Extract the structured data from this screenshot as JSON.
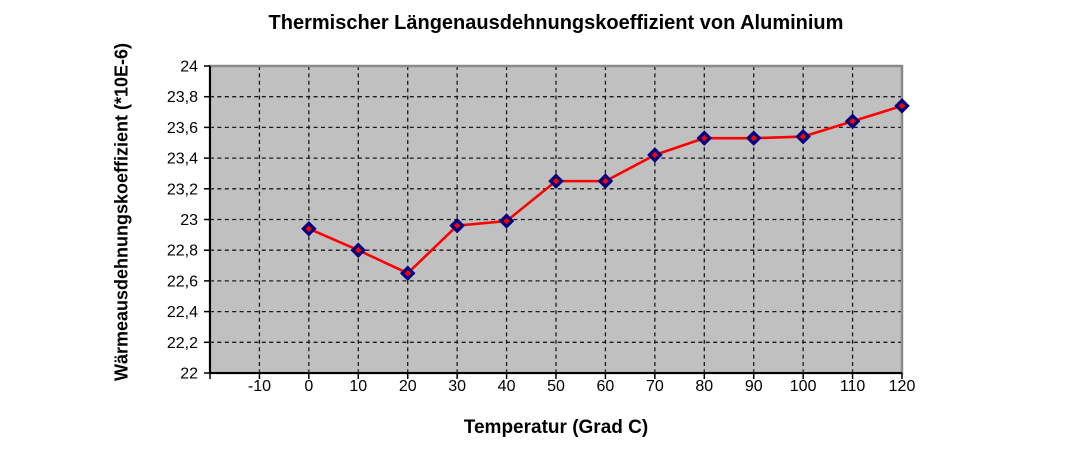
{
  "chart_data": {
    "type": "line",
    "title": "Thermischer Längenausdehnungskoeffizient von Aluminium",
    "xlabel": "Temperatur (Grad C)",
    "ylabel": "Wärmeausdehnungskoeffizient (*10E-6)",
    "series": [
      {
        "x": [
          0,
          10,
          20,
          30,
          40,
          50,
          60,
          70,
          80,
          90,
          100,
          110,
          120
        ],
        "y": [
          22.94,
          22.8,
          22.65,
          22.96,
          22.99,
          23.25,
          23.25,
          23.42,
          23.53,
          23.53,
          23.54,
          23.64,
          23.74
        ]
      }
    ],
    "xlim": [
      -20,
      120
    ],
    "ylim": [
      22,
      24
    ],
    "x_ticks": [
      -10,
      0,
      10,
      20,
      30,
      40,
      50,
      60,
      70,
      80,
      90,
      100,
      110,
      120
    ],
    "x_tick_labels": [
      "-10",
      "0",
      "10",
      "20",
      "30",
      "40",
      "50",
      "60",
      "70",
      "80",
      "90",
      "100",
      "110",
      "120"
    ],
    "y_ticks": [
      22,
      22.2,
      22.4,
      22.6,
      22.8,
      23,
      23.2,
      23.4,
      23.6,
      23.8,
      24
    ],
    "y_tick_labels": [
      "22",
      "22,2",
      "22,4",
      "22,6",
      "22,8",
      "23",
      "23,2",
      "23,4",
      "23,6",
      "23,8",
      "24"
    ],
    "grid": true,
    "legend": false,
    "marker": "diamond",
    "colors": {
      "line": "#ff0000",
      "marker_fill": "#ff0000",
      "marker_border": "#000080",
      "plot_bg": "#c0c0c0",
      "plot_border": "#8a8a8a",
      "grid": "#1a1a1a",
      "axis": "#000000",
      "text": "#000000"
    }
  }
}
